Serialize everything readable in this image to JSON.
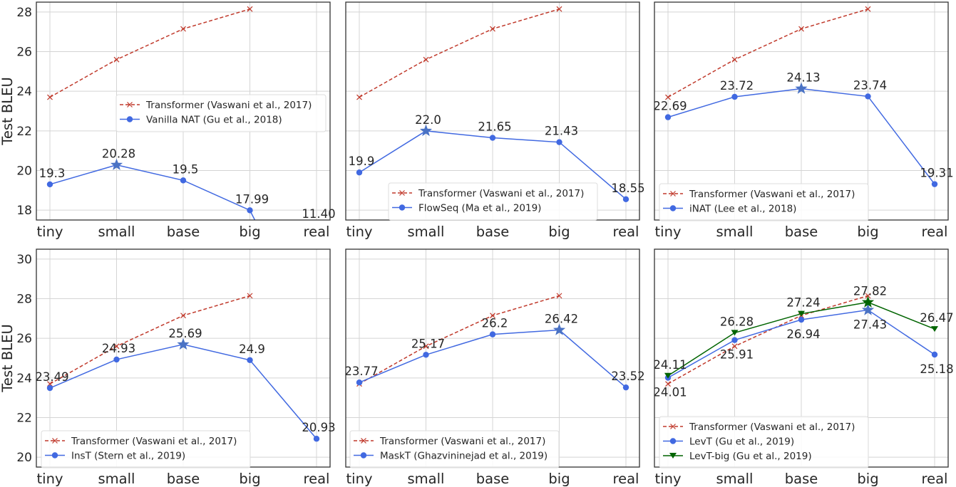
{
  "figure": {
    "ylabel": "Test BLEU",
    "categories": [
      "tiny",
      "small",
      "base",
      "big",
      "real"
    ],
    "colors": {
      "transformer": "#c0392b",
      "blue": "#4169e1",
      "star_blue": "#4a72c4",
      "green": "#006400",
      "grid": "#d4d4d4",
      "axes": "#333333",
      "text": "#262626"
    }
  },
  "chart_data": [
    {
      "type": "line",
      "panel": "top-left",
      "categories": [
        "tiny",
        "small",
        "base",
        "big",
        "real"
      ],
      "ylabel": "Test BLEU",
      "ylim": [
        17.5,
        28.5
      ],
      "yticks": [
        18,
        20,
        22,
        24,
        26,
        28
      ],
      "grid": true,
      "legend_position": "center-right",
      "legend": [
        {
          "label": "Transformer (Vaswani et al., 2017)",
          "style": "dashed-x",
          "color": "#c0392b"
        },
        {
          "label": "Vanilla NAT (Gu et al., 2018)",
          "style": "solid-circle",
          "color": "#4169e1"
        }
      ],
      "series": [
        {
          "name": "Transformer (Vaswani et al., 2017)",
          "values": [
            23.7,
            25.6,
            27.15,
            28.15,
            null
          ],
          "labels": false
        },
        {
          "name": "Vanilla NAT (Gu et al., 2018)",
          "values": [
            19.3,
            20.28,
            19.5,
            17.99,
            11.4
          ],
          "labels": [
            "19.3",
            "20.28",
            "19.5",
            "17.99",
            "11.40"
          ],
          "star_index": 1
        }
      ]
    },
    {
      "type": "line",
      "panel": "top-middle",
      "categories": [
        "tiny",
        "small",
        "base",
        "big",
        "real"
      ],
      "ylim": [
        17.5,
        28.5
      ],
      "yticks": [
        18,
        20,
        22,
        24,
        26,
        28
      ],
      "grid": true,
      "legend_position": "lower-center",
      "legend": [
        {
          "label": "Transformer (Vaswani et al., 2017)",
          "style": "dashed-x",
          "color": "#c0392b"
        },
        {
          "label": "FlowSeq (Ma et al., 2019)",
          "style": "solid-circle",
          "color": "#4169e1"
        }
      ],
      "series": [
        {
          "name": "Transformer (Vaswani et al., 2017)",
          "values": [
            23.7,
            25.6,
            27.15,
            28.15,
            null
          ],
          "labels": false
        },
        {
          "name": "FlowSeq (Ma et al., 2019)",
          "values": [
            19.9,
            22.0,
            21.65,
            21.43,
            18.55
          ],
          "labels": [
            "19.9",
            "22.0",
            "21.65",
            "21.43",
            "18.55"
          ],
          "star_index": 1
        }
      ]
    },
    {
      "type": "line",
      "panel": "top-right",
      "categories": [
        "tiny",
        "small",
        "base",
        "big",
        "real"
      ],
      "ylim": [
        17.5,
        28.5
      ],
      "yticks": [
        18,
        20,
        22,
        24,
        26,
        28
      ],
      "grid": true,
      "legend_position": "lower-left",
      "legend": [
        {
          "label": "Transformer (Vaswani et al., 2017)",
          "style": "dashed-x",
          "color": "#c0392b"
        },
        {
          "label": "iNAT (Lee et al., 2018)",
          "style": "solid-circle",
          "color": "#4169e1"
        }
      ],
      "series": [
        {
          "name": "Transformer (Vaswani et al., 2017)",
          "values": [
            23.7,
            25.6,
            27.15,
            28.15,
            null
          ],
          "labels": false
        },
        {
          "name": "iNAT (Lee et al., 2018)",
          "values": [
            22.69,
            23.72,
            24.13,
            23.74,
            19.31
          ],
          "labels": [
            "22.69",
            "23.72",
            "24.13",
            "23.74",
            "19.31"
          ],
          "star_index": 2
        }
      ]
    },
    {
      "type": "line",
      "panel": "bottom-left",
      "categories": [
        "tiny",
        "small",
        "base",
        "big",
        "real"
      ],
      "ylabel": "Test BLEU",
      "ylim": [
        19.5,
        30.5
      ],
      "yticks": [
        20,
        22,
        24,
        26,
        28,
        30
      ],
      "grid": true,
      "legend_position": "lower-left",
      "legend": [
        {
          "label": "Transformer (Vaswani et al., 2017)",
          "style": "dashed-x",
          "color": "#c0392b"
        },
        {
          "label": "InsT (Stern et al., 2019)",
          "style": "solid-circle",
          "color": "#4169e1"
        }
      ],
      "series": [
        {
          "name": "Transformer (Vaswani et al., 2017)",
          "values": [
            23.7,
            25.6,
            27.15,
            28.15,
            null
          ],
          "labels": false
        },
        {
          "name": "InsT (Stern et al., 2019)",
          "values": [
            23.49,
            24.93,
            25.69,
            24.9,
            20.93
          ],
          "labels": [
            "23.49",
            "24.93",
            "25.69",
            "24.9",
            "20.93"
          ],
          "star_index": 2
        }
      ]
    },
    {
      "type": "line",
      "panel": "bottom-middle",
      "categories": [
        "tiny",
        "small",
        "base",
        "big",
        "real"
      ],
      "ylim": [
        19.5,
        30.5
      ],
      "yticks": [
        20,
        22,
        24,
        26,
        28,
        30
      ],
      "grid": true,
      "legend_position": "lower-left",
      "legend": [
        {
          "label": "Transformer (Vaswani et al., 2017)",
          "style": "dashed-x",
          "color": "#c0392b"
        },
        {
          "label": "MaskT (Ghazvininejad et al., 2019)",
          "style": "solid-circle",
          "color": "#4169e1"
        }
      ],
      "series": [
        {
          "name": "Transformer (Vaswani et al., 2017)",
          "values": [
            23.7,
            25.6,
            27.15,
            28.15,
            null
          ],
          "labels": false
        },
        {
          "name": "MaskT (Ghazvininejad et al., 2019)",
          "values": [
            23.77,
            25.17,
            26.2,
            26.42,
            23.52
          ],
          "labels": [
            "23.77",
            "25.17",
            "26.2",
            "26.42",
            "23.52"
          ],
          "star_index": 3
        }
      ]
    },
    {
      "type": "line",
      "panel": "bottom-right",
      "categories": [
        "tiny",
        "small",
        "base",
        "big",
        "real"
      ],
      "ylim": [
        19.5,
        30.5
      ],
      "yticks": [
        20,
        22,
        24,
        26,
        28,
        30
      ],
      "grid": true,
      "legend_position": "lower-left",
      "legend": [
        {
          "label": "Transformer (Vaswani et al., 2017)",
          "style": "dashed-x",
          "color": "#c0392b"
        },
        {
          "label": "LevT (Gu et al., 2019)",
          "style": "solid-circle",
          "color": "#4169e1"
        },
        {
          "label": "LevT-big (Gu et al., 2019)",
          "style": "solid-triangle",
          "color": "#006400"
        }
      ],
      "series": [
        {
          "name": "Transformer (Vaswani et al., 2017)",
          "values": [
            23.7,
            25.6,
            27.15,
            28.15,
            null
          ],
          "labels": false
        },
        {
          "name": "LevT (Gu et al., 2019)",
          "values": [
            24.01,
            25.91,
            26.94,
            27.43,
            25.18
          ],
          "labels": [
            "24.01",
            "25.91",
            "26.94",
            "27.43",
            "25.18"
          ],
          "star_index": 3,
          "label_below": true
        },
        {
          "name": "LevT-big (Gu et al., 2019)",
          "values": [
            24.11,
            26.28,
            27.24,
            27.82,
            26.47
          ],
          "labels": [
            "24.11",
            "26.28",
            "27.24",
            "27.82",
            "26.47"
          ],
          "star_index": 3
        }
      ]
    }
  ]
}
